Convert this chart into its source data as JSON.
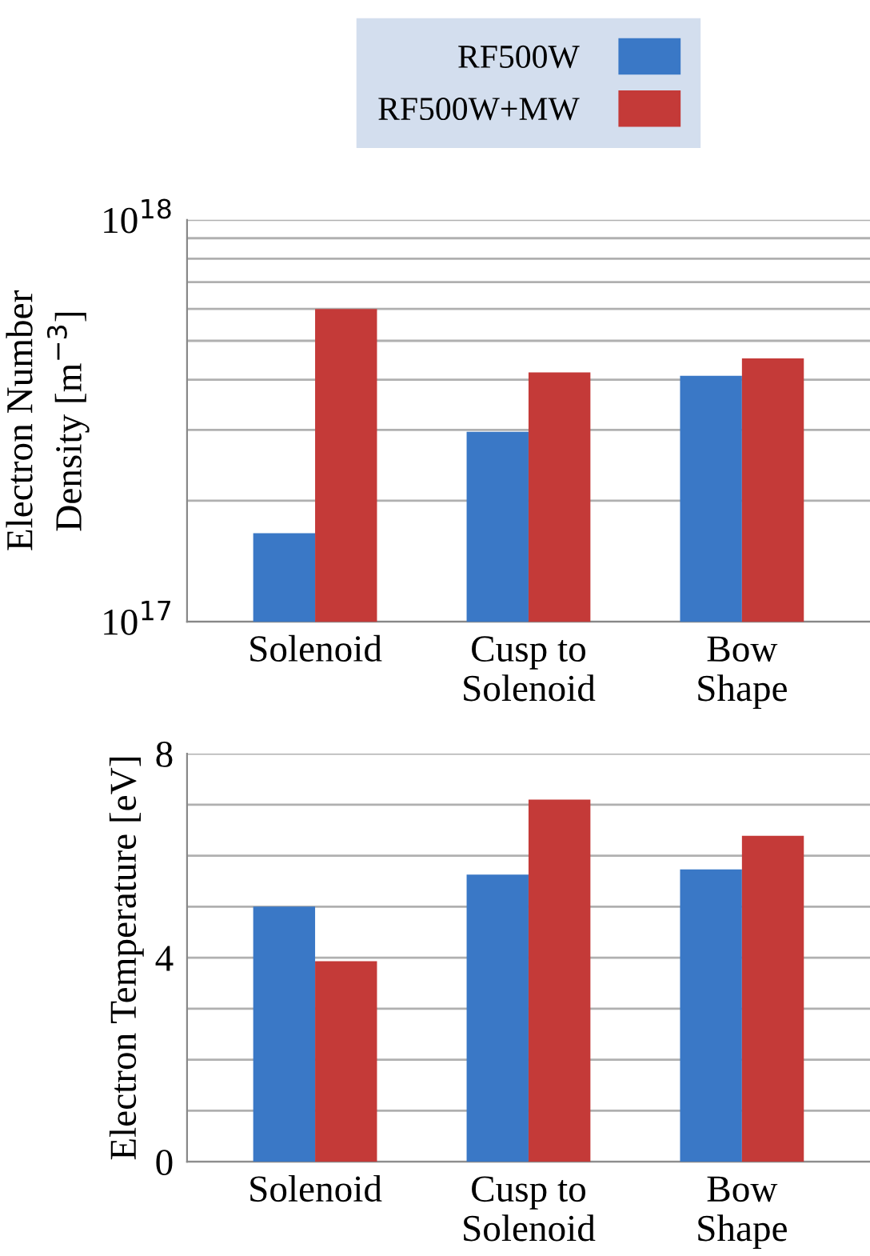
{
  "chart_data": [
    {
      "type": "bar",
      "categories": [
        "Solenoid",
        "Cusp to\nSolenoid",
        "Bow\nShape"
      ],
      "ylabel": "Electron Number\nDensity [m$^{−3}$]",
      "log": true,
      "ylim": [
        1e+17,
        1e+18
      ],
      "yticks": [
        {
          "value": 1e+17,
          "label": "10$^{17}$"
        },
        {
          "value": 2e+17,
          "label": null
        },
        {
          "value": 3e+17,
          "label": null
        },
        {
          "value": 4e+17,
          "label": null
        },
        {
          "value": 5e+17,
          "label": null
        },
        {
          "value": 6e+17,
          "label": null
        },
        {
          "value": 7e+17,
          "label": null
        },
        {
          "value": 8e+17,
          "label": null
        },
        {
          "value": 9e+17,
          "label": null
        },
        {
          "value": 1e+18,
          "label": "10$^{18}$"
        }
      ],
      "grid": "y",
      "legend": "top",
      "series": [
        {
          "name": "RF500W",
          "color": "#3a78c6",
          "values": [
            1.66e+17,
            2.97e+17,
            4.09e+17
          ]
        },
        {
          "name": "RF500W+MW",
          "color": "#c43a38",
          "values": [
            6e+17,
            4.17e+17,
            4.52e+17
          ]
        }
      ]
    },
    {
      "type": "bar",
      "categories": [
        "Solenoid",
        "Cusp to\nSolenoid",
        "Bow\nShape"
      ],
      "ylabel": "Electron Temperature [eV]",
      "ylim": [
        0,
        8
      ],
      "yticks": [
        0,
        {
          "value": 1,
          "label": null
        },
        {
          "value": 2,
          "label": null
        },
        {
          "value": 3,
          "label": null
        },
        4,
        {
          "value": 5,
          "label": null
        },
        {
          "value": 6,
          "label": null
        },
        {
          "value": 7,
          "label": null
        },
        8
      ],
      "grid": "y",
      "series": [
        {
          "color": "#3a78c6",
          "values": [
            5.0,
            5.63,
            5.73
          ]
        },
        {
          "color": "#c43a38",
          "values": [
            3.93,
            7.1,
            6.39
          ]
        }
      ]
    }
  ]
}
